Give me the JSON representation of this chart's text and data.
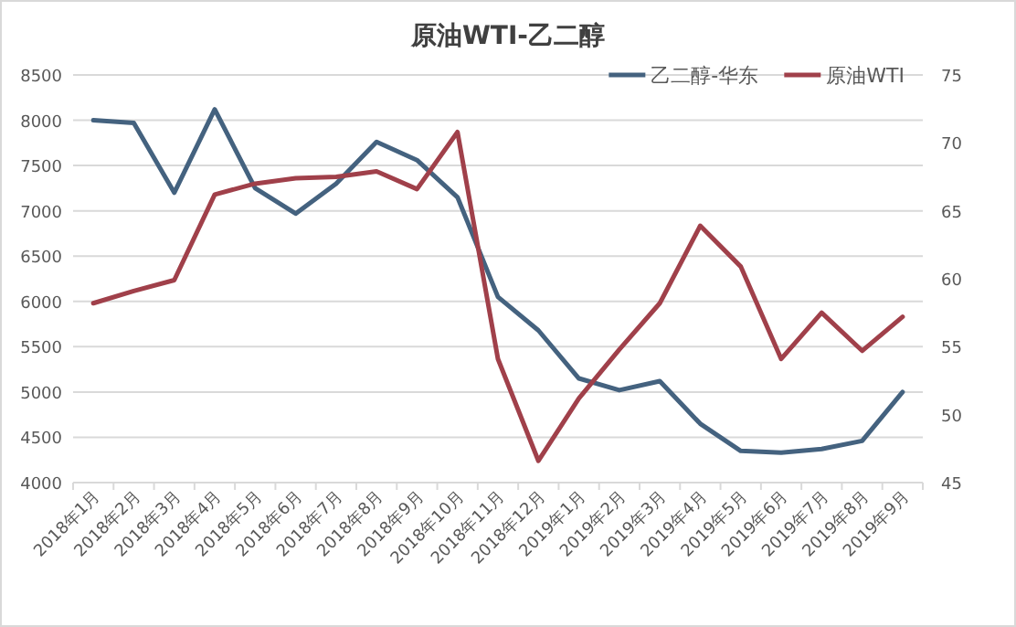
{
  "chart_data": {
    "type": "line",
    "title": "原油WTI-乙二醇",
    "categories": [
      "2018年1月",
      "2018年2月",
      "2018年3月",
      "2018年4月",
      "2018年5月",
      "2018年6月",
      "2018年7月",
      "2018年8月",
      "2018年9月",
      "2018年10月",
      "2018年11月",
      "2018年12月",
      "2019年1月",
      "2019年2月",
      "2019年3月",
      "2019年4月",
      "2019年5月",
      "2019年6月",
      "2019年7月",
      "2019年8月",
      "2019年9月"
    ],
    "series": [
      {
        "name": "乙二醇-华东",
        "color": "#44627f",
        "values": [
          8000,
          7970,
          7200,
          8120,
          7250,
          6970,
          7300,
          7760,
          7560,
          7150,
          6050,
          5680,
          5150,
          5020,
          5120,
          4650,
          4350,
          4330,
          4370,
          4460,
          5000
        ]
      },
      {
        "name": "原油WTI",
        "color": "#a0404a",
        "axis": "y2",
        "values": [
          58.2,
          59.1,
          59.9,
          66.2,
          67.0,
          67.4,
          67.5,
          67.9,
          66.6,
          70.8,
          54.1,
          46.6,
          51.2,
          54.8,
          58.2,
          63.9,
          60.9,
          54.1,
          57.5,
          54.7,
          57.2
        ]
      }
    ],
    "ylim": [
      4000,
      8500
    ],
    "yticks": [
      4000,
      4500,
      5000,
      5500,
      6000,
      6500,
      7000,
      7500,
      8000,
      8500
    ],
    "y2lim": [
      45,
      75
    ],
    "y2ticks": [
      45,
      50,
      55,
      60,
      65,
      70,
      75
    ],
    "grid": "y",
    "legend": "top right",
    "marker": "none",
    "line_style": "solid"
  }
}
